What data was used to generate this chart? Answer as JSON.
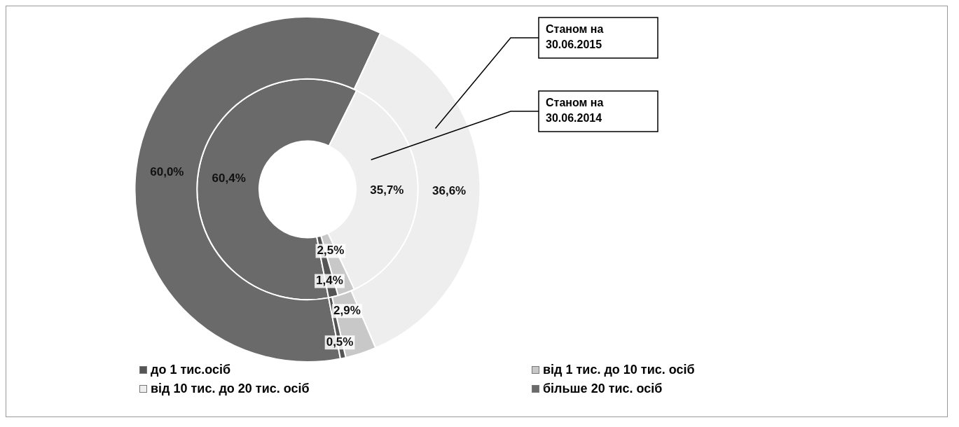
{
  "chart_data": {
    "type": "donut",
    "categories": [
      "до 1 тис.осіб",
      "від 1 тис. до 10 тис. осіб",
      "від 10 тис. до 20 тис. осіб",
      "більше 20 тис. осіб"
    ],
    "colors": [
      "#555555",
      "#c8c8c8",
      "#eeeeee",
      "#6a6a6a"
    ],
    "series": [
      {
        "name": "Станом на 30.06.2015",
        "values": [
          0.5,
          2.9,
          36.6,
          60.0
        ],
        "value_labels": [
          "0,5%",
          "2,9%",
          "36,6%",
          "60,0%"
        ]
      },
      {
        "name": "Станом на 30.06.2014",
        "values": [
          1.4,
          2.5,
          35.7,
          60.4
        ],
        "value_labels": [
          "1,4%",
          "2,5%",
          "35,7%",
          "60,4%"
        ]
      }
    ],
    "legend": "bottom"
  }
}
